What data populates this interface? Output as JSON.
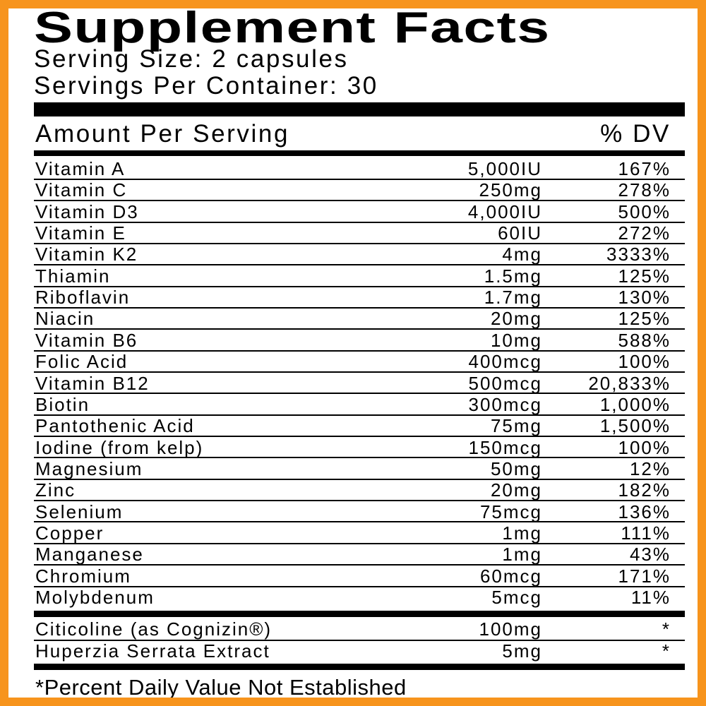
{
  "header": {
    "title": "Supplement Facts",
    "serving_size": "Serving Size: 2 capsules",
    "servings_per_container": "Servings Per Container: 30"
  },
  "table": {
    "columns": [
      "Amount Per Serving",
      "% DV"
    ],
    "rows": [
      [
        "Vitamin A",
        "5,000IU",
        "167%"
      ],
      [
        "Vitamin C",
        "250mg",
        "278%"
      ],
      [
        "Vitamin D3",
        "4,000IU",
        "500%"
      ],
      [
        "Vitamin E",
        "60IU",
        "272%"
      ],
      [
        "Vitamin K2",
        "4mg",
        "3333%"
      ],
      [
        "Thiamin",
        "1.5mg",
        "125%"
      ],
      [
        "Riboflavin",
        "1.7mg",
        "130%"
      ],
      [
        "Niacin",
        "20mg",
        "125%"
      ],
      [
        "Vitamin B6",
        "10mg",
        "588%"
      ],
      [
        "Folic Acid",
        "400mcg",
        "100%"
      ],
      [
        "Vitamin B12",
        "500mcg",
        "20,833%"
      ],
      [
        "Biotin",
        "300mcg",
        "1,000%"
      ],
      [
        "Pantothenic Acid",
        "75mg",
        "1,500%"
      ],
      [
        "Iodine (from kelp)",
        "150mcg",
        "100%"
      ],
      [
        "Magnesium",
        "50mg",
        "12%"
      ],
      [
        "Zinc",
        "20mg",
        "182%"
      ],
      [
        "Selenium",
        "75mcg",
        "136%"
      ],
      [
        "Copper",
        "1mg",
        "111%"
      ],
      [
        "Manganese",
        "1mg",
        "43%"
      ],
      [
        "Chromium",
        "60mcg",
        "171%"
      ],
      [
        "Molybdenum",
        "5mcg",
        "11%"
      ]
    ],
    "other_rows": [
      [
        "Citicoline (as Cognizin®)",
        "100mg",
        "*"
      ],
      [
        "Huperzia Serrata Extract",
        "5mg",
        "*"
      ]
    ]
  },
  "footnote": "*Percent Daily Value Not Established"
}
